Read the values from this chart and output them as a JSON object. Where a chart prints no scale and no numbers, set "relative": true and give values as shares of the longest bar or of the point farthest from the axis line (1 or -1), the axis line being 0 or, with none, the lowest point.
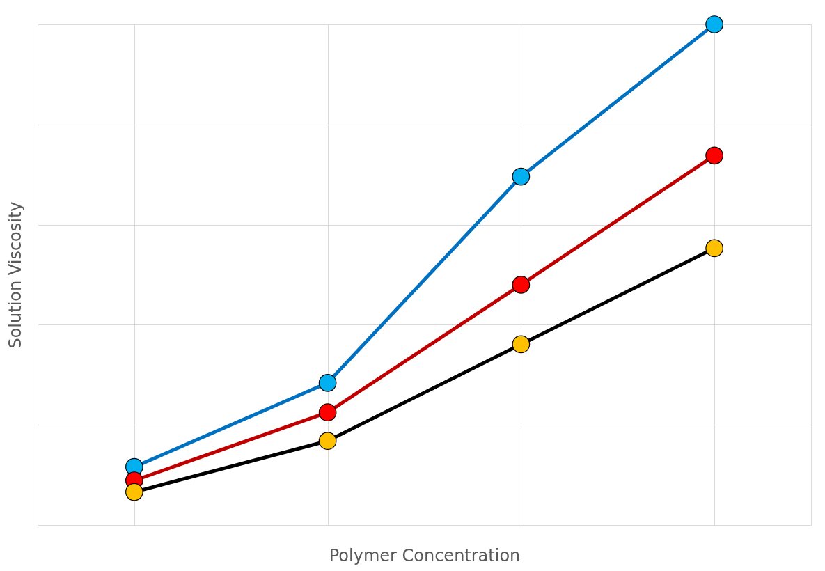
{
  "chart_data": {
    "type": "line",
    "xlabel": "Polymer Concentration",
    "ylabel": "Solution Viscosity",
    "relative": true,
    "categories": [
      null,
      null,
      null,
      null
    ],
    "grid": true,
    "marker": "circle",
    "line_style": "solid",
    "series": [
      {
        "color": "#0070c0",
        "colors": [
          "#00b0f0",
          "#00b0f0",
          "#00b0f0",
          "#00b0f0"
        ],
        "values": [
          0.116,
          0.284,
          0.696,
          1
        ]
      },
      {
        "color": "#c00000",
        "colors": [
          "#ff0000",
          "#ff0000",
          "#ff0000",
          "#ff0000"
        ],
        "values": [
          0.089,
          0.225,
          0.48,
          0.738
        ]
      },
      {
        "color": "#000000",
        "colors": [
          "#ffc000",
          "#ffc000",
          "#ffc000",
          "#ffc000"
        ],
        "values": [
          0.066,
          0.168,
          0.361,
          0.553
        ]
      }
    ]
  }
}
